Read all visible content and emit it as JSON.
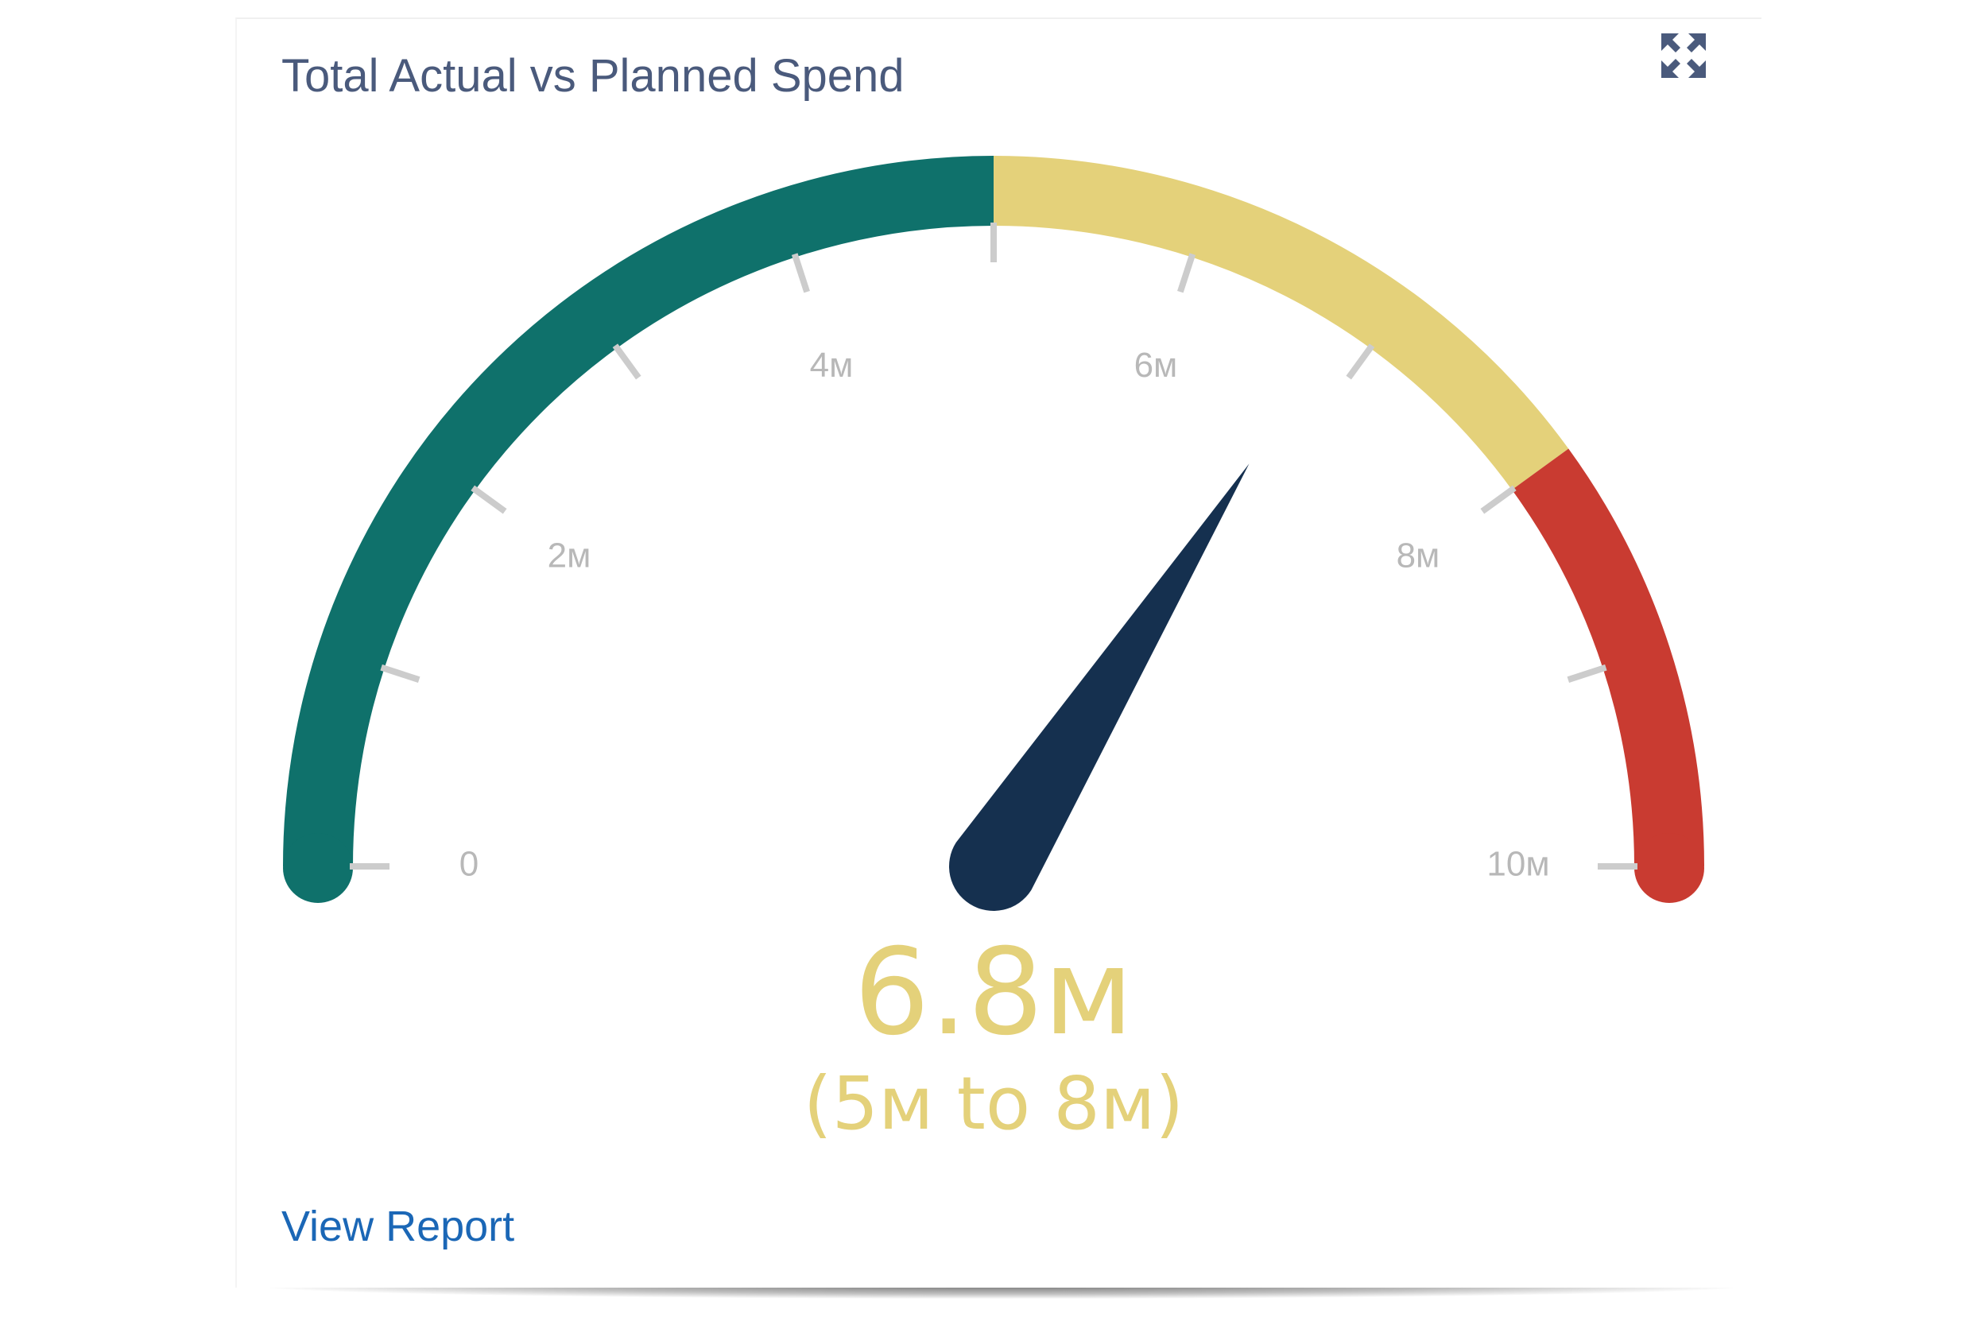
{
  "card": {
    "title": "Total Actual vs Planned Spend",
    "view_report_label": "View Report",
    "expand_icon": "expand-icon"
  },
  "chart_data": {
    "type": "gauge",
    "title": "Total Actual vs Planned Spend",
    "min": 0,
    "max": 10,
    "unit": "M",
    "value": 6.8,
    "value_label": "6.8м",
    "range_label": "(5м to 8м)",
    "bands": [
      {
        "from": 0,
        "to": 5,
        "color": "#0f716b"
      },
      {
        "from": 5,
        "to": 8,
        "color": "#e4d17a"
      },
      {
        "from": 8,
        "to": 10,
        "color": "#c93b31"
      }
    ],
    "major_ticks": [
      {
        "value": 0,
        "label": "0"
      },
      {
        "value": 2,
        "label": "2м"
      },
      {
        "value": 4,
        "label": "4м"
      },
      {
        "value": 6,
        "label": "6м"
      },
      {
        "value": 8,
        "label": "8м"
      },
      {
        "value": 10,
        "label": "10м"
      }
    ],
    "tick_marks": [
      0,
      1,
      2,
      3,
      4,
      5,
      6,
      7,
      8,
      9,
      10
    ],
    "needle_color": "#15304f",
    "tick_color": "#cccccc",
    "value_color": "#e4d17a"
  }
}
